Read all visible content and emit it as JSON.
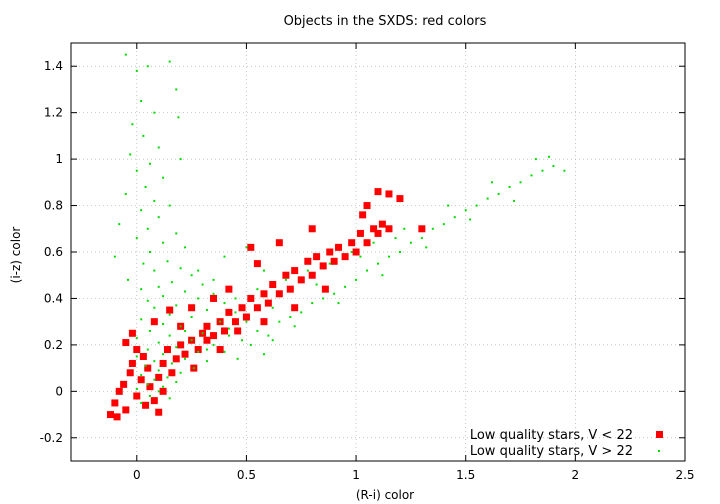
{
  "chart_data": {
    "type": "scatter",
    "title": "Objects in the SXDS: red colors",
    "xlabel": "(R-i) color",
    "ylabel": "(i-z) color",
    "xlim": [
      -0.3,
      2.5
    ],
    "ylim": [
      -0.3,
      1.5
    ],
    "x_ticks": [
      "0",
      "0.5",
      "1",
      "1.5",
      "2",
      "2.5"
    ],
    "y_ticks": [
      "-0.2",
      "0",
      "0.2",
      "0.4",
      "0.6",
      "0.8",
      "1",
      "1.2",
      "1.4"
    ],
    "grid": true,
    "legend_position": "bottom-right",
    "series": [
      {
        "name": "Low quality stars, V > 22",
        "marker": "dot",
        "color": "#00dd00",
        "points": [
          [
            -0.05,
            1.45
          ],
          [
            0.05,
            1.4
          ],
          [
            0.0,
            1.38
          ],
          [
            0.15,
            1.42
          ],
          [
            0.18,
            1.3
          ],
          [
            0.02,
            1.25
          ],
          [
            0.08,
            1.2
          ],
          [
            -0.02,
            1.15
          ],
          [
            0.19,
            1.18
          ],
          [
            0.03,
            1.1
          ],
          [
            0.1,
            1.05
          ],
          [
            -0.03,
            1.02
          ],
          [
            0.06,
            0.98
          ],
          [
            0.2,
            1.0
          ],
          [
            0.0,
            0.95
          ],
          [
            0.12,
            0.92
          ],
          [
            0.04,
            0.88
          ],
          [
            -0.05,
            0.85
          ],
          [
            0.08,
            0.82
          ],
          [
            0.15,
            0.8
          ],
          [
            0.02,
            0.78
          ],
          [
            0.1,
            0.75
          ],
          [
            -0.08,
            0.72
          ],
          [
            0.05,
            0.7
          ],
          [
            0.18,
            0.68
          ],
          [
            0.0,
            0.66
          ],
          [
            0.12,
            0.64
          ],
          [
            0.22,
            0.62
          ],
          [
            0.06,
            0.6
          ],
          [
            -0.1,
            0.58
          ],
          [
            0.14,
            0.56
          ],
          [
            0.03,
            0.55
          ],
          [
            0.2,
            0.53
          ],
          [
            0.08,
            0.52
          ],
          [
            0.25,
            0.5
          ],
          [
            -0.04,
            0.48
          ],
          [
            0.16,
            0.47
          ],
          [
            0.3,
            0.46
          ],
          [
            0.1,
            0.45
          ],
          [
            0.02,
            0.44
          ],
          [
            0.22,
            0.43
          ],
          [
            0.35,
            0.42
          ],
          [
            0.12,
            0.41
          ],
          [
            0.28,
            0.4
          ],
          [
            0.05,
            0.39
          ],
          [
            0.4,
            0.38
          ],
          [
            0.18,
            0.37
          ],
          [
            0.08,
            0.36
          ],
          [
            0.32,
            0.35
          ],
          [
            0.45,
            0.34
          ],
          [
            0.15,
            0.33
          ],
          [
            0.25,
            0.32
          ],
          [
            0.02,
            0.31
          ],
          [
            0.38,
            0.3
          ],
          [
            0.5,
            0.3
          ],
          [
            0.12,
            0.29
          ],
          [
            0.2,
            0.28
          ],
          [
            0.42,
            0.27
          ],
          [
            0.06,
            0.26
          ],
          [
            0.3,
            0.25
          ],
          [
            0.55,
            0.26
          ],
          [
            0.15,
            0.24
          ],
          [
            0.0,
            0.23
          ],
          [
            0.25,
            0.22
          ],
          [
            0.48,
            0.22
          ],
          [
            0.1,
            0.21
          ],
          [
            0.35,
            0.2
          ],
          [
            0.18,
            0.19
          ],
          [
            0.05,
            0.18
          ],
          [
            0.6,
            0.24
          ],
          [
            0.28,
            0.17
          ],
          [
            0.12,
            0.16
          ],
          [
            0.4,
            0.17
          ],
          [
            0.0,
            0.15
          ],
          [
            0.22,
            0.14
          ],
          [
            0.08,
            0.13
          ],
          [
            0.32,
            0.13
          ],
          [
            0.16,
            0.12
          ],
          [
            0.04,
            0.11
          ],
          [
            0.26,
            0.1
          ],
          [
            0.1,
            0.09
          ],
          [
            0.2,
            0.08
          ],
          [
            0.02,
            0.07
          ],
          [
            0.14,
            0.06
          ],
          [
            0.08,
            0.05
          ],
          [
            0.18,
            0.04
          ],
          [
            0.05,
            0.03
          ],
          [
            0.12,
            0.02
          ],
          [
            0.0,
            0.01
          ],
          [
            0.1,
            0.0
          ],
          [
            0.06,
            -0.02
          ],
          [
            0.15,
            -0.03
          ],
          [
            0.02,
            -0.05
          ],
          [
            0.65,
            0.3
          ],
          [
            0.7,
            0.32
          ],
          [
            0.75,
            0.34
          ],
          [
            0.8,
            0.38
          ],
          [
            0.85,
            0.4
          ],
          [
            0.9,
            0.42
          ],
          [
            0.95,
            0.45
          ],
          [
            1.0,
            0.48
          ],
          [
            1.05,
            0.52
          ],
          [
            1.1,
            0.55
          ],
          [
            1.15,
            0.58
          ],
          [
            1.2,
            0.6
          ],
          [
            1.25,
            0.64
          ],
          [
            1.3,
            0.66
          ],
          [
            1.35,
            0.7
          ],
          [
            1.4,
            0.72
          ],
          [
            1.45,
            0.75
          ],
          [
            1.5,
            0.78
          ],
          [
            1.55,
            0.8
          ],
          [
            1.6,
            0.83
          ],
          [
            1.65,
            0.85
          ],
          [
            1.7,
            0.88
          ],
          [
            1.75,
            0.9
          ],
          [
            1.8,
            0.93
          ],
          [
            1.85,
            0.95
          ],
          [
            1.9,
            0.97
          ],
          [
            1.95,
            0.95
          ],
          [
            1.72,
            0.82
          ],
          [
            1.52,
            0.74
          ],
          [
            1.32,
            0.62
          ],
          [
            1.12,
            0.5
          ],
          [
            0.92,
            0.38
          ],
          [
            0.72,
            0.28
          ],
          [
            0.62,
            0.36
          ],
          [
            0.82,
            0.46
          ],
          [
            1.02,
            0.58
          ],
          [
            1.22,
            0.7
          ],
          [
            1.42,
            0.8
          ],
          [
            1.62,
            0.9
          ],
          [
            1.82,
            1.0
          ],
          [
            1.88,
            1.01
          ],
          [
            0.55,
            0.44
          ],
          [
            0.45,
            0.4
          ],
          [
            0.35,
            0.48
          ],
          [
            0.28,
            0.52
          ],
          [
            0.4,
            0.58
          ],
          [
            0.5,
            0.62
          ],
          [
            0.58,
            0.52
          ],
          [
            0.68,
            0.48
          ],
          [
            0.78,
            0.52
          ],
          [
            0.88,
            0.55
          ],
          [
            0.98,
            0.6
          ],
          [
            1.08,
            0.64
          ],
          [
            1.18,
            0.66
          ],
          [
            0.42,
            0.24
          ],
          [
            0.52,
            0.2
          ],
          [
            0.62,
            0.22
          ],
          [
            0.32,
            0.18
          ],
          [
            0.22,
            0.26
          ],
          [
            0.58,
            0.16
          ],
          [
            0.46,
            0.14
          ]
        ]
      },
      {
        "name": "Low quality stars, V < 22",
        "marker": "square",
        "color": "#ff0000",
        "points": [
          [
            -0.12,
            -0.1
          ],
          [
            -0.1,
            -0.05
          ],
          [
            -0.08,
            0.0
          ],
          [
            -0.06,
            0.03
          ],
          [
            -0.05,
            -0.08
          ],
          [
            -0.03,
            0.08
          ],
          [
            -0.02,
            0.12
          ],
          [
            0.0,
            -0.02
          ],
          [
            0.02,
            0.05
          ],
          [
            0.03,
            0.15
          ],
          [
            0.05,
            0.1
          ],
          [
            0.06,
            0.02
          ],
          [
            0.08,
            -0.04
          ],
          [
            0.1,
            0.06
          ],
          [
            0.12,
            0.12
          ],
          [
            0.14,
            0.18
          ],
          [
            0.16,
            0.08
          ],
          [
            0.18,
            0.14
          ],
          [
            0.2,
            0.2
          ],
          [
            0.22,
            0.16
          ],
          [
            0.25,
            0.22
          ],
          [
            0.28,
            0.18
          ],
          [
            0.3,
            0.25
          ],
          [
            0.32,
            0.28
          ],
          [
            0.35,
            0.24
          ],
          [
            0.38,
            0.3
          ],
          [
            0.4,
            0.26
          ],
          [
            0.42,
            0.34
          ],
          [
            0.45,
            0.3
          ],
          [
            0.48,
            0.36
          ],
          [
            0.5,
            0.32
          ],
          [
            0.52,
            0.4
          ],
          [
            0.55,
            0.36
          ],
          [
            0.58,
            0.42
          ],
          [
            0.6,
            0.38
          ],
          [
            0.62,
            0.46
          ],
          [
            0.65,
            0.42
          ],
          [
            0.68,
            0.5
          ],
          [
            0.7,
            0.44
          ],
          [
            0.72,
            0.52
          ],
          [
            0.75,
            0.48
          ],
          [
            0.78,
            0.56
          ],
          [
            0.8,
            0.5
          ],
          [
            0.82,
            0.58
          ],
          [
            0.85,
            0.54
          ],
          [
            0.88,
            0.6
          ],
          [
            0.9,
            0.56
          ],
          [
            0.92,
            0.62
          ],
          [
            0.95,
            0.58
          ],
          [
            0.98,
            0.64
          ],
          [
            1.0,
            0.6
          ],
          [
            1.02,
            0.68
          ],
          [
            1.05,
            0.64
          ],
          [
            1.08,
            0.7
          ],
          [
            1.1,
            0.68
          ],
          [
            1.12,
            0.72
          ],
          [
            1.15,
            0.7
          ],
          [
            1.05,
            0.8
          ],
          [
            1.1,
            0.86
          ],
          [
            1.15,
            0.85
          ],
          [
            1.2,
            0.83
          ],
          [
            1.03,
            0.76
          ],
          [
            0.8,
            0.7
          ],
          [
            0.65,
            0.64
          ],
          [
            0.52,
            0.62
          ],
          [
            0.55,
            0.55
          ],
          [
            0.42,
            0.44
          ],
          [
            0.35,
            0.4
          ],
          [
            0.25,
            0.36
          ],
          [
            0.15,
            0.35
          ],
          [
            0.08,
            0.3
          ],
          [
            -0.05,
            0.21
          ],
          [
            -0.02,
            0.25
          ],
          [
            0.2,
            0.28
          ],
          [
            0.32,
            0.22
          ],
          [
            0.46,
            0.26
          ],
          [
            0.58,
            0.3
          ],
          [
            0.72,
            0.36
          ],
          [
            0.86,
            0.44
          ],
          [
            1.3,
            0.7
          ],
          [
            0.1,
            -0.09
          ],
          [
            0.04,
            -0.06
          ],
          [
            -0.09,
            -0.11
          ],
          [
            0.0,
            0.18
          ],
          [
            0.12,
            0.0
          ],
          [
            0.26,
            0.1
          ],
          [
            0.38,
            0.18
          ]
        ]
      }
    ]
  }
}
